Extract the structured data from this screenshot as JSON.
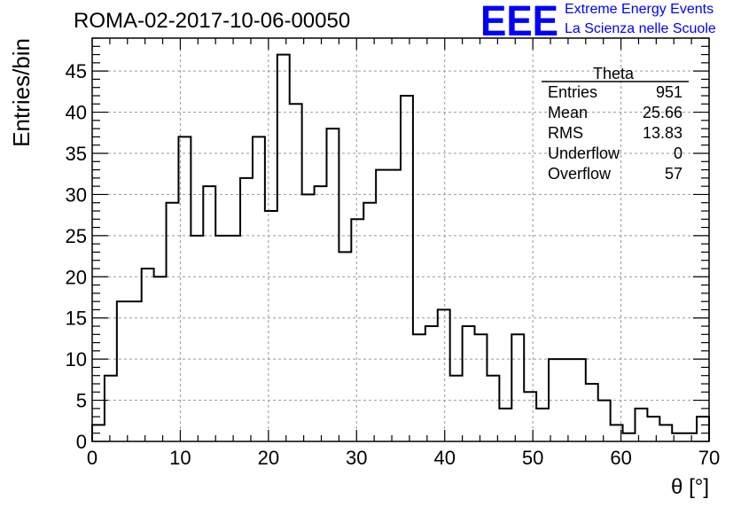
{
  "header": {
    "run_title": "ROMA-02-2017-10-06-00050",
    "logo_text": "EEE",
    "tagline_1": "Extreme Energy Events",
    "tagline_2": "La Scienza nelle Scuole"
  },
  "colors": {
    "line": "#000000",
    "grid": "#999999",
    "logo": "#0000ff"
  },
  "stats_box": {
    "title": "Theta",
    "rows": [
      {
        "label": "Entries",
        "value": "951"
      },
      {
        "label": "Mean",
        "value": "25.66"
      },
      {
        "label": "RMS",
        "value": "13.83"
      },
      {
        "label": "Underflow",
        "value": "0"
      },
      {
        "label": "Overflow",
        "value": "57"
      }
    ]
  },
  "chart_data": {
    "type": "histogram",
    "title": "ROMA-02-2017-10-06-00050",
    "xlabel": "θ [°]",
    "ylabel": "Entries/bin",
    "xlim": [
      0,
      70
    ],
    "ylim": [
      0,
      49
    ],
    "xticks": [
      0,
      10,
      20,
      30,
      40,
      50,
      60,
      70
    ],
    "yticks": [
      0,
      5,
      10,
      15,
      20,
      25,
      30,
      35,
      40,
      45
    ],
    "grid": true,
    "bin_width": 1.4,
    "bin_edges_start": 0,
    "values": [
      2,
      8,
      17,
      17,
      21,
      20,
      29,
      37,
      25,
      31,
      25,
      25,
      32,
      37,
      28,
      47,
      41,
      30,
      31,
      38,
      23,
      27,
      29,
      33,
      33,
      42,
      13,
      14,
      16,
      8,
      14,
      13,
      8,
      4,
      13,
      6,
      4,
      10,
      10,
      10,
      7,
      5,
      2,
      1,
      4,
      3,
      2,
      1,
      1,
      3
    ]
  }
}
